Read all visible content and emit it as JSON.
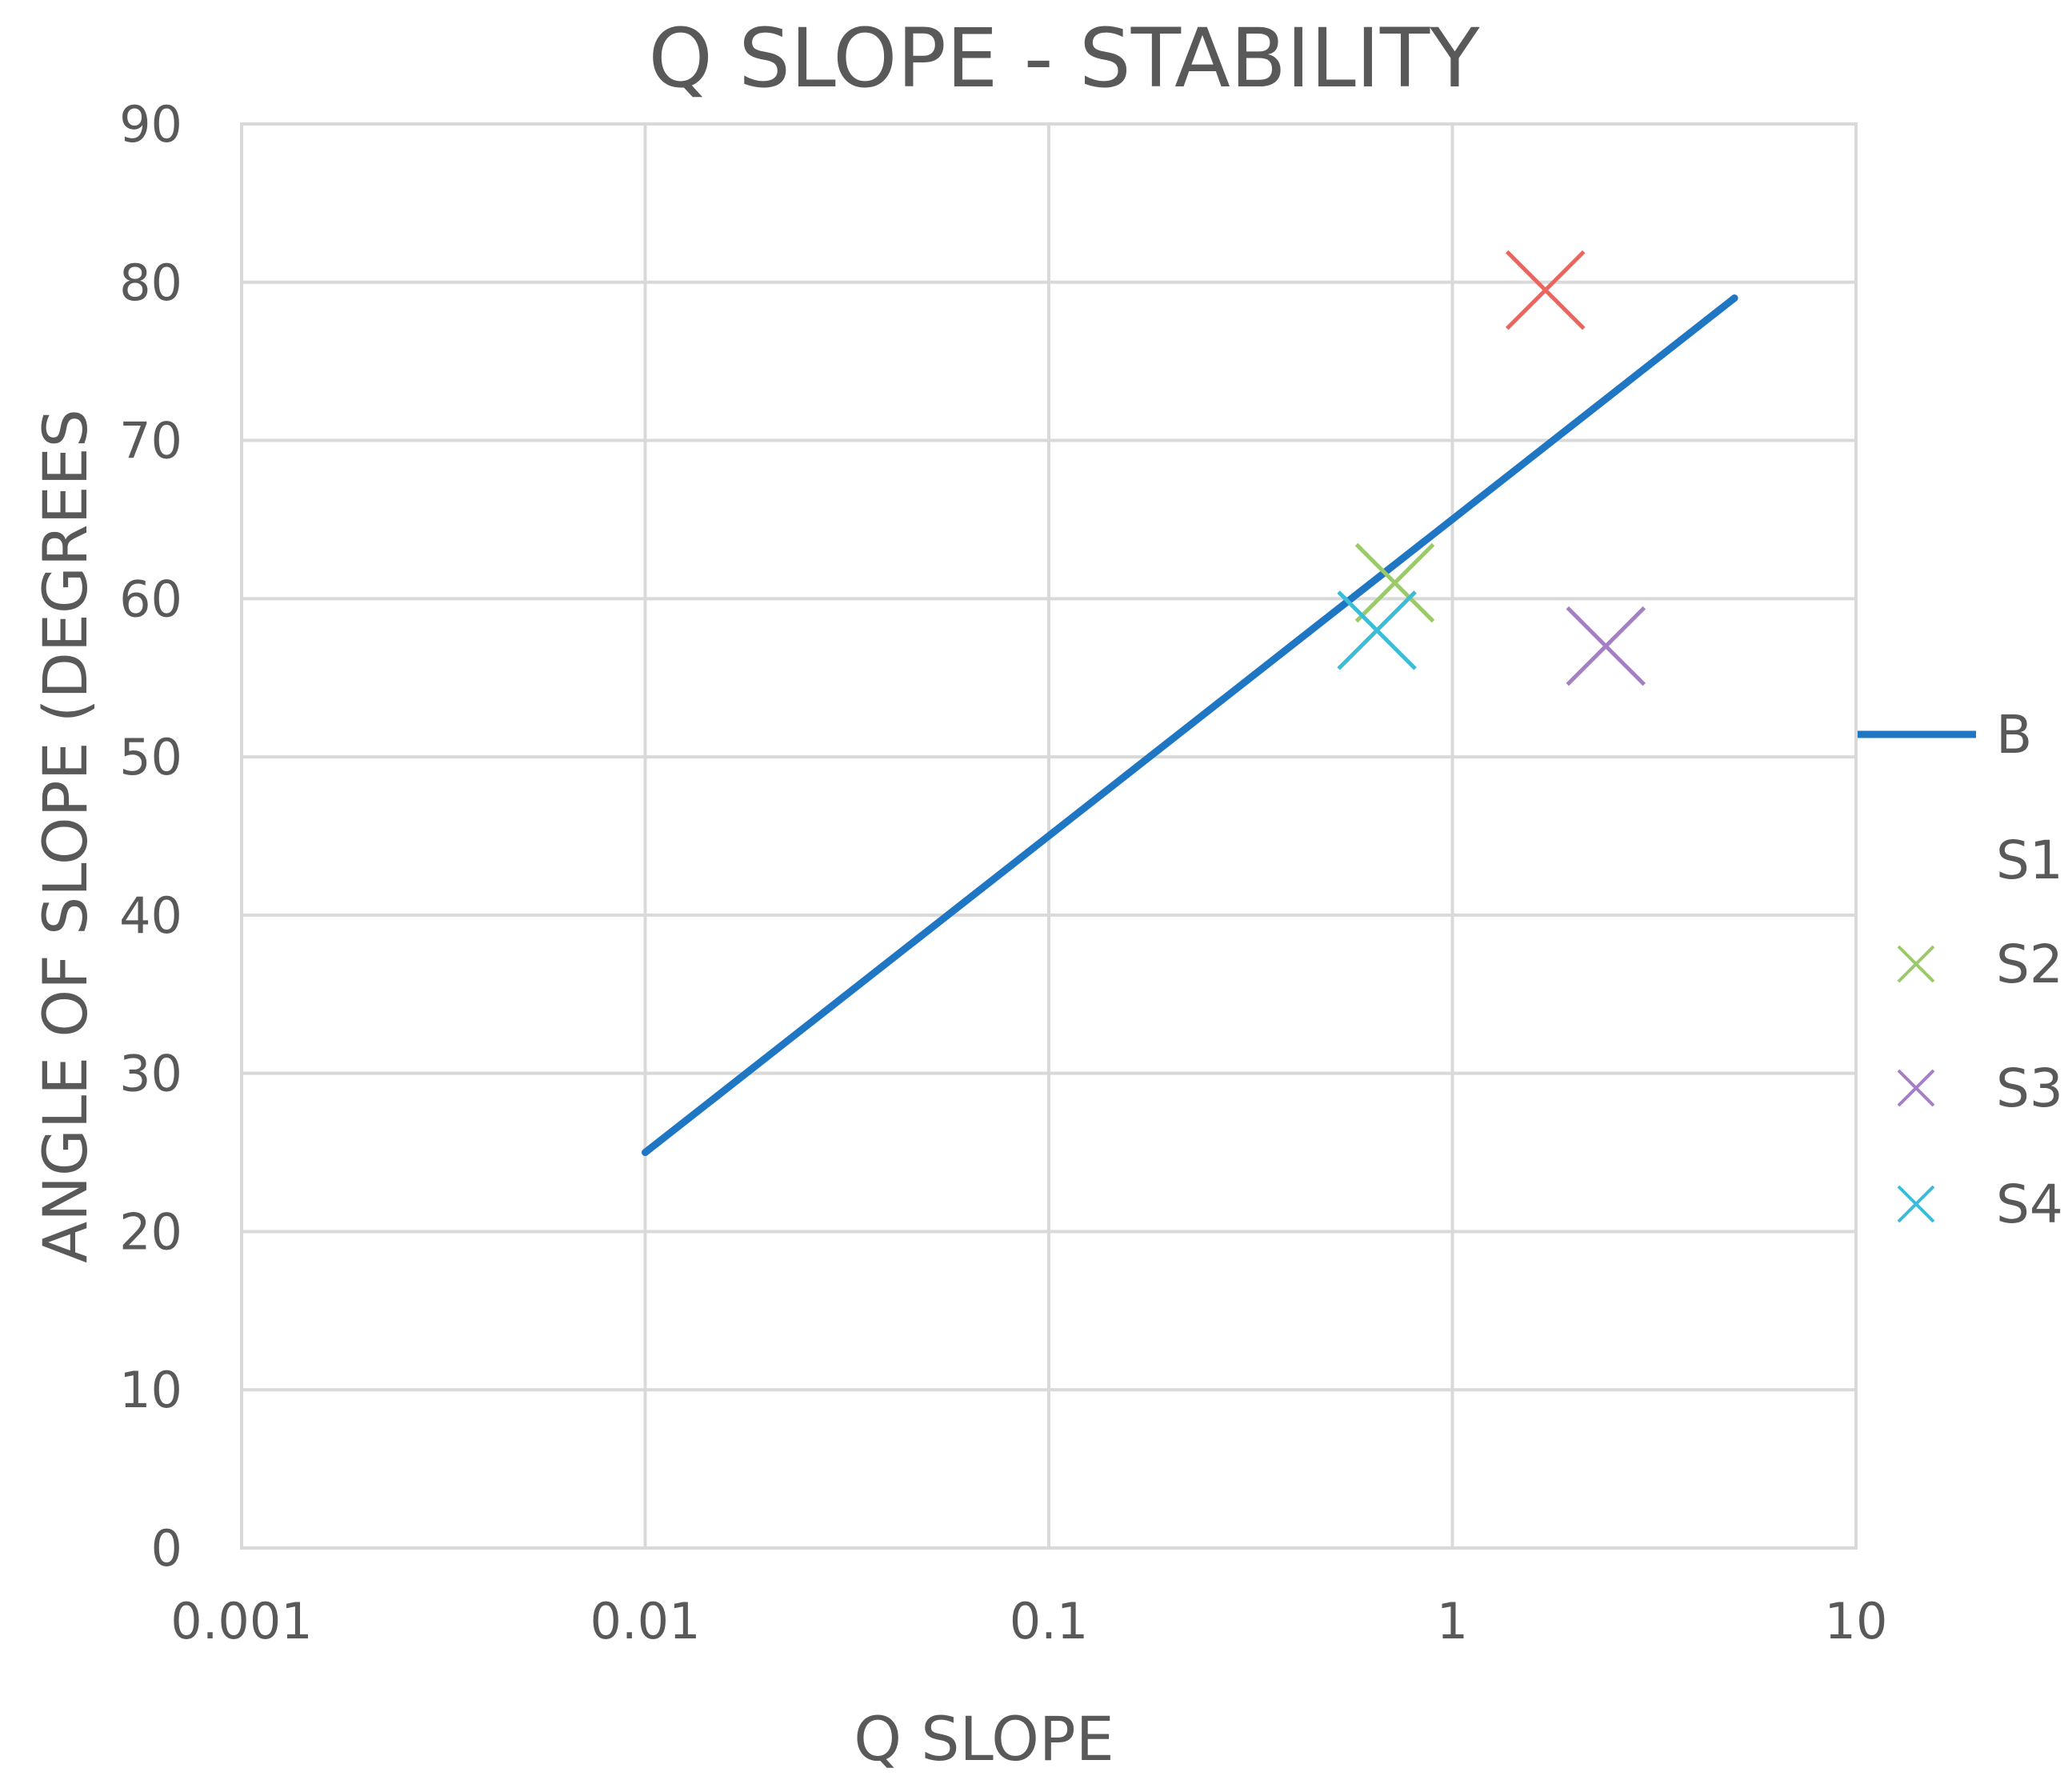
{
  "chart_data": {
    "type": "scatter",
    "title": "Q SLOPE - STABILITY",
    "xlabel": "Q SLOPE",
    "ylabel": "ANGLE OF SLOPE (DEGREES",
    "x_scale": "log",
    "xlim": [
      0.001,
      10
    ],
    "ylim": [
      0,
      90
    ],
    "x_ticks": [
      0.001,
      0.01,
      0.1,
      1,
      10
    ],
    "x_tick_labels": [
      "0.001",
      "0.01",
      "0.1",
      "1",
      "10"
    ],
    "y_ticks": [
      0,
      10,
      20,
      30,
      40,
      50,
      60,
      70,
      80,
      90
    ],
    "y_tick_labels": [
      "0",
      "10",
      "20",
      "30",
      "40",
      "50",
      "60",
      "70",
      "80",
      "90"
    ],
    "grid": true,
    "legend_position": "right",
    "series": [
      {
        "name": "B",
        "type": "line",
        "color": "#1f77c4",
        "x": [
          0.01,
          5
        ],
        "y": [
          25,
          79
        ]
      },
      {
        "name": "S1",
        "type": "scatter",
        "color": "#e8665f",
        "x": [
          1.7
        ],
        "y": [
          79.5
        ]
      },
      {
        "name": "S2",
        "type": "scatter",
        "color": "#9bc96b",
        "x": [
          0.72
        ],
        "y": [
          61
        ]
      },
      {
        "name": "S3",
        "type": "scatter",
        "color": "#a57fc6",
        "x": [
          2.4
        ],
        "y": [
          57
        ]
      },
      {
        "name": "S4",
        "type": "scatter",
        "color": "#3bbcd9",
        "x": [
          0.65
        ],
        "y": [
          58
        ]
      }
    ]
  }
}
